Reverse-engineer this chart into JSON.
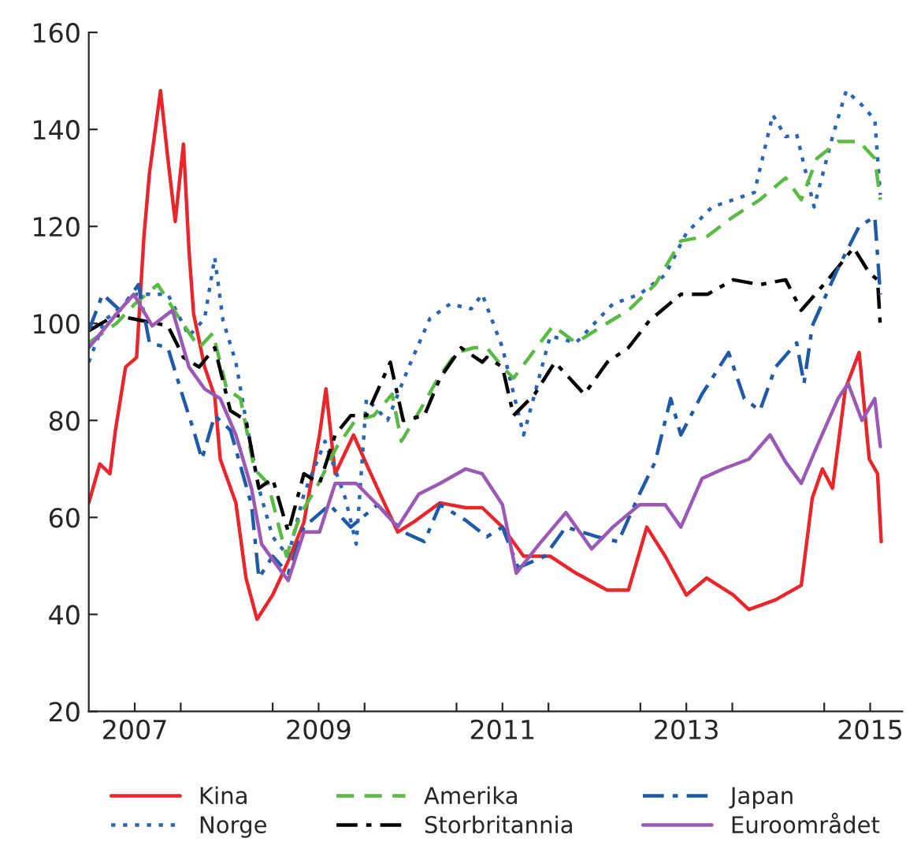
{
  "chart_data": {
    "type": "line",
    "xlim": [
      2007.0,
      2015.85
    ],
    "ylim": [
      20,
      160
    ],
    "yticks": [
      20,
      40,
      60,
      80,
      100,
      120,
      140,
      160
    ],
    "xticks": [
      {
        "value": 2007.5,
        "label": "2007"
      },
      {
        "value": 2008,
        "label": null
      },
      {
        "value": 2009.5,
        "label": "2009"
      },
      {
        "value": 2009,
        "label": null
      },
      {
        "value": 2010,
        "label": null
      },
      {
        "value": 2011,
        "label": null
      },
      {
        "value": 2011.5,
        "label": "2011"
      },
      {
        "value": 2012,
        "label": null
      },
      {
        "value": 2013,
        "label": null
      },
      {
        "value": 2013.5,
        "label": "2013"
      },
      {
        "value": 2014,
        "label": null
      },
      {
        "value": 2015,
        "label": null
      },
      {
        "value": 2015.5,
        "label": "2015"
      }
    ],
    "grid": false,
    "legend": "bottom",
    "series": [
      {
        "name": "Kina",
        "color": "#e8262b",
        "line_style": "solid",
        "x": [
          2007.0,
          2007.12,
          2007.23,
          2007.29,
          2007.4,
          2007.52,
          2007.6,
          2007.66,
          2007.78,
          2007.86,
          2007.94,
          2008.03,
          2008.09,
          2008.14,
          2008.26,
          2008.37,
          2008.43,
          2008.6,
          2008.71,
          2008.83,
          2009.0,
          2009.17,
          2009.34,
          2009.51,
          2009.58,
          2009.68,
          2009.88,
          2010.02,
          2010.14,
          2010.36,
          2010.53,
          2010.82,
          2011.1,
          2011.28,
          2011.5,
          2011.73,
          2012.02,
          2012.3,
          2012.64,
          2012.87,
          2013.07,
          2013.27,
          2013.5,
          2013.72,
          2014.01,
          2014.18,
          2014.47,
          2014.75,
          2014.87,
          2014.98,
          2015.09,
          2015.23,
          2015.38,
          2015.49,
          2015.58,
          2015.62
        ],
        "values": [
          63,
          71,
          69,
          78,
          91,
          93,
          118,
          131,
          148,
          134,
          121,
          137,
          115,
          102,
          91,
          85,
          72,
          63,
          47.5,
          39,
          44,
          51,
          59,
          77,
          86.5,
          69,
          77,
          71,
          66,
          57,
          59,
          63,
          62,
          62,
          58,
          52,
          52,
          48.5,
          45,
          45,
          58,
          52,
          44,
          47.5,
          44,
          41,
          43,
          46,
          64,
          70,
          66,
          86.5,
          94,
          72,
          69,
          55
        ]
      },
      {
        "name": "Norge",
        "color": "#2a64b4",
        "line_style": "dotted",
        "x": [
          2007.0,
          2007.17,
          2007.52,
          2007.86,
          2008.09,
          2008.26,
          2008.37,
          2008.46,
          2008.6,
          2008.71,
          2008.85,
          2009.0,
          2009.17,
          2009.34,
          2009.57,
          2009.79,
          2009.91,
          2010.02,
          2010.25,
          2010.48,
          2010.71,
          2010.93,
          2011.16,
          2011.28,
          2011.5,
          2011.73,
          2012.02,
          2012.3,
          2012.7,
          2012.99,
          2013.27,
          2013.5,
          2013.78,
          2014.01,
          2014.24,
          2014.44,
          2014.58,
          2014.7,
          2014.89,
          2015.09,
          2015.24,
          2015.41,
          2015.55,
          2015.61
        ],
        "values": [
          92,
          100.6,
          106,
          106,
          97.4,
          101,
          113.6,
          100.6,
          92,
          80,
          66,
          56,
          52,
          64.8,
          75.7,
          64,
          54.5,
          84.5,
          80,
          91,
          101,
          104,
          103,
          106,
          95,
          77,
          97.4,
          96,
          104,
          106,
          110,
          118.6,
          124,
          125.5,
          127,
          143,
          138.5,
          139,
          124,
          138.5,
          148,
          145,
          142,
          126.5
        ]
      },
      {
        "name": "Amerika",
        "color": "#5bb946",
        "line_style": "dashed",
        "x": [
          2007.0,
          2007.3,
          2007.5,
          2007.75,
          2008.0,
          2008.2,
          2008.35,
          2008.5,
          2008.65,
          2008.8,
          2008.95,
          2009.15,
          2009.3,
          2009.5,
          2009.7,
          2009.9,
          2010.1,
          2010.3,
          2010.4,
          2010.6,
          2010.8,
          2011.0,
          2011.19,
          2011.33,
          2011.5,
          2011.62,
          2011.79,
          2012.05,
          2012.3,
          2012.59,
          2012.87,
          2013.16,
          2013.44,
          2013.73,
          2014.01,
          2014.3,
          2014.58,
          2014.75,
          2014.92,
          2015.15,
          2015.38,
          2015.55,
          2015.61
        ],
        "values": [
          96,
          100,
          104,
          108,
          100.6,
          95,
          98,
          86.5,
          84.5,
          70,
          67,
          52,
          60.5,
          67,
          74.6,
          80,
          81,
          85.4,
          75.7,
          82,
          88.7,
          94,
          95,
          95,
          91,
          88.7,
          93,
          99.5,
          96,
          99.5,
          102.7,
          108,
          117,
          118,
          122,
          125.5,
          130,
          125.5,
          134,
          137.5,
          137.5,
          134,
          125.5
        ]
      },
      {
        "name": "Storbritannia",
        "color": "#000000",
        "line_style": "dashdot",
        "x": [
          2007.0,
          2007.29,
          2007.57,
          2007.86,
          2008.03,
          2008.2,
          2008.37,
          2008.54,
          2008.71,
          2008.85,
          2009.0,
          2009.17,
          2009.34,
          2009.51,
          2009.68,
          2009.85,
          2010.02,
          2010.28,
          2010.42,
          2010.65,
          2010.82,
          2011.05,
          2011.28,
          2011.33,
          2011.5,
          2011.62,
          2011.85,
          2012.07,
          2012.39,
          2012.64,
          2012.87,
          2013.1,
          2013.44,
          2013.73,
          2014.01,
          2014.3,
          2014.58,
          2014.75,
          2015.04,
          2015.32,
          2015.49,
          2015.58,
          2015.61
        ],
        "values": [
          98.5,
          101.7,
          100.6,
          99.5,
          93,
          91,
          95,
          82,
          80,
          66,
          68,
          57,
          69,
          67,
          77,
          81,
          81,
          92,
          80,
          81,
          88.7,
          95,
          92,
          93,
          91,
          81,
          85.4,
          92,
          85.4,
          92,
          95,
          100.6,
          106,
          106,
          109,
          108,
          109,
          102.7,
          109,
          115.6,
          110.4,
          109,
          99.5
        ]
      },
      {
        "name": "Japan",
        "color": "#1f5aa6",
        "line_style": "dashdot",
        "x": [
          2007.0,
          2007.15,
          2007.34,
          2007.54,
          2007.66,
          2007.86,
          2008.03,
          2008.14,
          2008.23,
          2008.37,
          2008.54,
          2008.77,
          2008.85,
          2009.0,
          2009.17,
          2009.34,
          2009.62,
          2009.85,
          2010.14,
          2010.42,
          2010.65,
          2010.82,
          2011.1,
          2011.33,
          2011.5,
          2011.67,
          2011.96,
          2012.19,
          2012.53,
          2012.76,
          2012.99,
          2013.16,
          2013.33,
          2013.44,
          2013.67,
          2013.96,
          2014.13,
          2014.3,
          2014.47,
          2014.7,
          2014.78,
          2014.87,
          2015.15,
          2015.38,
          2015.55,
          2015.61
        ],
        "values": [
          98.5,
          106,
          102.7,
          108,
          96,
          95,
          84.5,
          78,
          72,
          81,
          78,
          62.6,
          47.5,
          52,
          48.5,
          58,
          62.6,
          58,
          62.6,
          57,
          55,
          62.6,
          59.4,
          56,
          58,
          49.6,
          52,
          58,
          56,
          55,
          64.8,
          71.4,
          84.5,
          77,
          85.4,
          94,
          84.5,
          82,
          91,
          96,
          87.6,
          99.5,
          111.4,
          120,
          122,
          106
        ]
      },
      {
        "name": "Euroområdet",
        "color": "#9b59b6",
        "line_style": "solid",
        "x": [
          2007.0,
          2007.29,
          2007.49,
          2007.69,
          2007.91,
          2008.09,
          2008.26,
          2008.43,
          2008.6,
          2008.77,
          2008.88,
          2009.05,
          2009.17,
          2009.34,
          2009.51,
          2009.68,
          2009.91,
          2010.14,
          2010.36,
          2010.59,
          2010.82,
          2011.1,
          2011.28,
          2011.5,
          2011.65,
          2011.9,
          2012.19,
          2012.47,
          2012.7,
          2012.99,
          2013.27,
          2013.44,
          2013.67,
          2013.9,
          2014.18,
          2014.41,
          2014.58,
          2014.75,
          2014.92,
          2015.15,
          2015.26,
          2015.41,
          2015.55,
          2015.61
        ],
        "values": [
          95,
          101.7,
          106,
          99.5,
          102.7,
          91,
          86.5,
          84.5,
          77,
          66,
          54.5,
          50,
          47,
          57,
          57,
          67,
          67,
          62.6,
          58,
          64.8,
          67,
          70,
          69,
          62.6,
          48.5,
          54.5,
          61,
          53.5,
          58,
          62.6,
          62.6,
          58,
          68,
          70,
          72,
          77,
          71.4,
          67,
          74.6,
          84.5,
          87.6,
          80,
          84.5,
          74.6
        ]
      }
    ]
  }
}
